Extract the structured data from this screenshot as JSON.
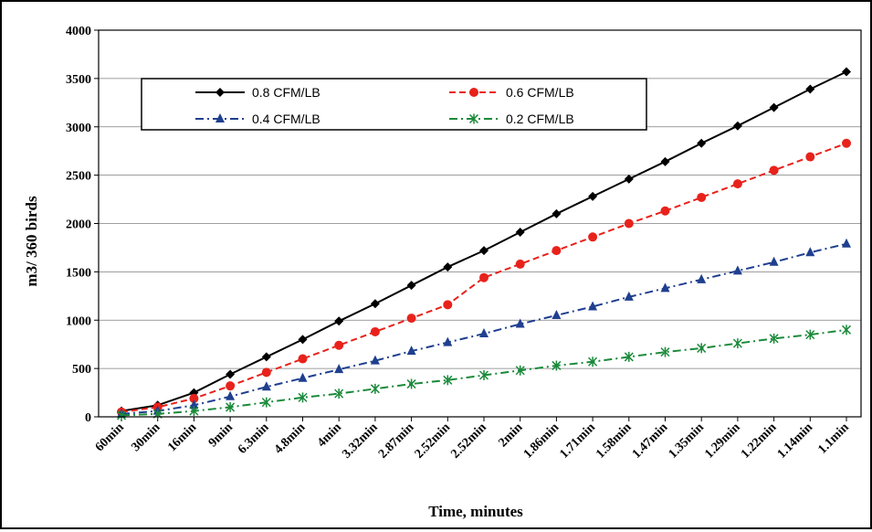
{
  "chart_data": {
    "type": "line",
    "xlabel": "Time, minutes",
    "ylabel": "m3/ 360 birds",
    "ylim": [
      0,
      4000
    ],
    "yticks": [
      0,
      500,
      1000,
      1500,
      2000,
      2500,
      3000,
      3500,
      4000
    ],
    "categories": [
      "60min",
      "30min",
      "16min",
      "9min",
      "6.3min",
      "4.8min",
      "4min",
      "3.32min",
      "2.87min",
      "2.52min",
      "2.52min",
      "2min",
      "1.86min",
      "1.71min",
      "1.58min",
      "1.47min",
      "1.35min",
      "1.29min",
      "1.22min",
      "1.14min",
      "1.1min"
    ],
    "grid": "horizontal",
    "legend_position": "top-inside",
    "series": [
      {
        "name": "0.8 CFM/LB",
        "color": "#000000",
        "marker": "diamond",
        "dash": "solid",
        "values": [
          60,
          120,
          250,
          440,
          620,
          800,
          990,
          1170,
          1360,
          1550,
          1720,
          1910,
          2100,
          2280,
          2460,
          2640,
          2830,
          3010,
          3200,
          3390,
          3570
        ]
      },
      {
        "name": "0.6 CFM/LB",
        "color": "#e8221b",
        "marker": "circle",
        "dash": "dashed",
        "values": [
          50,
          100,
          190,
          320,
          460,
          600,
          740,
          880,
          1020,
          1160,
          1440,
          1580,
          1720,
          1860,
          2000,
          2130,
          2270,
          2410,
          2550,
          2690,
          2830
        ]
      },
      {
        "name": "0.4 CFM/LB",
        "color": "#1f3f8f",
        "marker": "triangle",
        "dash": "dashdot",
        "values": [
          30,
          60,
          120,
          210,
          310,
          400,
          490,
          580,
          680,
          770,
          860,
          960,
          1050,
          1140,
          1240,
          1330,
          1420,
          1510,
          1600,
          1700,
          1790
        ]
      },
      {
        "name": "0.2 CFM/LB",
        "color": "#1a8a3a",
        "marker": "asterisk",
        "dash": "dashdot",
        "values": [
          15,
          30,
          60,
          100,
          150,
          200,
          240,
          290,
          340,
          380,
          430,
          480,
          530,
          570,
          620,
          670,
          710,
          760,
          810,
          850,
          900
        ]
      }
    ]
  }
}
